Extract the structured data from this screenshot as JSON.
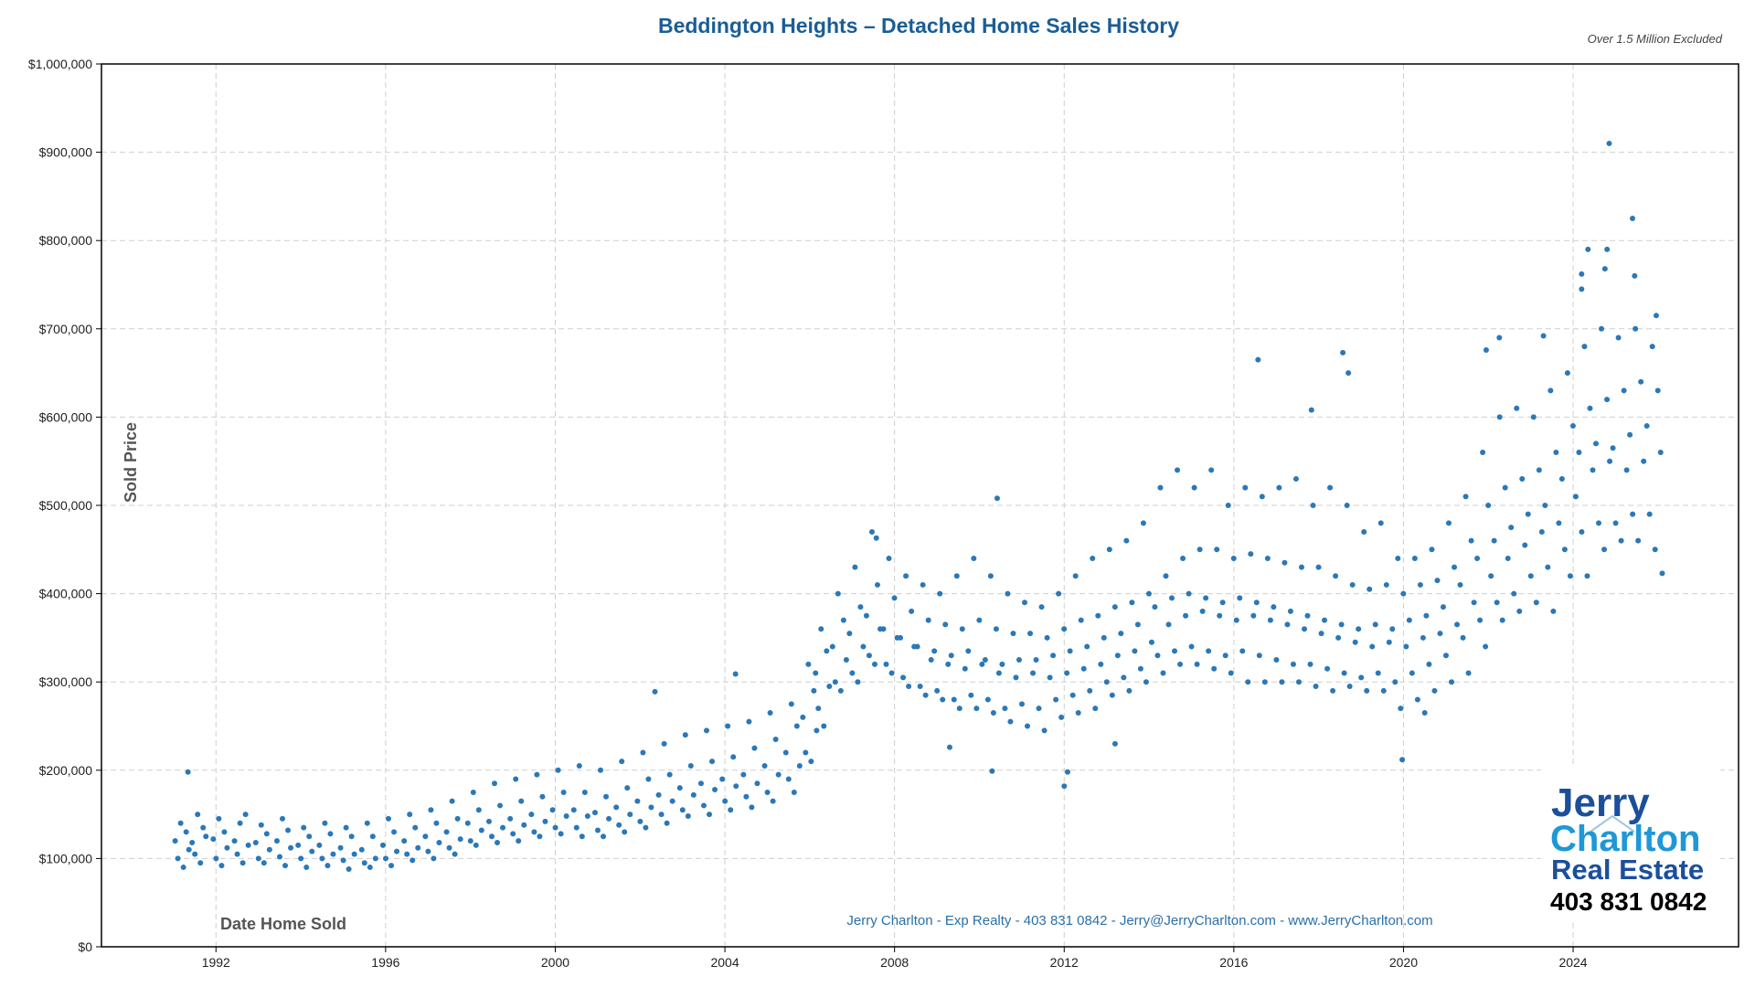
{
  "chart_data": {
    "type": "scatter",
    "title": "Beddington Heights – Detached Home Sales History",
    "subtitle": "Over 1.5 Million Excluded",
    "xlabel": "Date Home Sold",
    "ylabel": "Sold Price",
    "xlim": [
      1989.3,
      2027.9
    ],
    "ylim": [
      0,
      1000000
    ],
    "x_ticks": [
      1992,
      1996,
      2000,
      2004,
      2008,
      2012,
      2016,
      2020,
      2024
    ],
    "y_ticks": [
      0,
      100000,
      200000,
      300000,
      400000,
      500000,
      600000,
      700000,
      800000,
      900000,
      1000000
    ],
    "y_tick_labels": [
      "$0",
      "$100,000",
      "$200,000",
      "$300,000",
      "$400,000",
      "$500,000",
      "$600,000",
      "$700,000",
      "$800,000",
      "$900,000",
      "$1,000,000"
    ],
    "grid": true,
    "point_color": "#2a78b8",
    "groups": [
      {
        "x": 1991.2,
        "y": [
          120000,
          100000,
          140000,
          90000,
          130000,
          110000
        ]
      },
      {
        "x": 1991.6,
        "y": [
          118000,
          105000,
          150000,
          95000,
          135000,
          125000
        ]
      },
      {
        "x": 1992.1,
        "y": [
          122000,
          100000,
          145000,
          92000,
          130000,
          112000
        ]
      },
      {
        "x": 1992.6,
        "y": [
          120000,
          105000,
          140000,
          95000,
          150000,
          115000
        ]
      },
      {
        "x": 1993.1,
        "y": [
          118000,
          100000,
          138000,
          95000,
          128000,
          110000
        ]
      },
      {
        "x": 1993.6,
        "y": [
          120000,
          102000,
          145000,
          92000,
          132000,
          112000
        ]
      },
      {
        "x": 1994.1,
        "y": [
          115000,
          100000,
          135000,
          90000,
          125000,
          108000
        ]
      },
      {
        "x": 1994.6,
        "y": [
          115000,
          100000,
          140000,
          92000,
          128000,
          105000
        ]
      },
      {
        "x": 1995.1,
        "y": [
          112000,
          98000,
          135000,
          88000,
          125000,
          105000
        ]
      },
      {
        "x": 1995.6,
        "y": [
          110000,
          95000,
          140000,
          90000,
          125000,
          100000
        ]
      },
      {
        "x": 1996.1,
        "y": [
          115000,
          100000,
          145000,
          92000,
          130000,
          108000
        ]
      },
      {
        "x": 1996.6,
        "y": [
          120000,
          105000,
          150000,
          98000,
          135000,
          112000
        ]
      },
      {
        "x": 1997.1,
        "y": [
          125000,
          108000,
          155000,
          100000,
          140000,
          118000
        ]
      },
      {
        "x": 1997.6,
        "y": [
          130000,
          112000,
          165000,
          105000,
          145000,
          122000
        ]
      },
      {
        "x": 1998.1,
        "y": [
          140000,
          120000,
          175000,
          115000,
          155000,
          132000
        ]
      },
      {
        "x": 1998.6,
        "y": [
          142000,
          125000,
          185000,
          118000,
          160000,
          135000
        ]
      },
      {
        "x": 1999.1,
        "y": [
          145000,
          128000,
          190000,
          120000,
          165000,
          138000
        ]
      },
      {
        "x": 1999.6,
        "y": [
          150000,
          130000,
          195000,
          125000,
          170000,
          142000
        ]
      },
      {
        "x": 2000.1,
        "y": [
          155000,
          135000,
          200000,
          128000,
          175000,
          148000
        ]
      },
      {
        "x": 2000.6,
        "y": [
          155000,
          135000,
          205000,
          125000,
          175000,
          148000
        ]
      },
      {
        "x": 2001.1,
        "y": [
          152000,
          132000,
          200000,
          125000,
          170000,
          145000
        ]
      },
      {
        "x": 2001.6,
        "y": [
          158000,
          138000,
          210000,
          130000,
          180000,
          150000
        ]
      },
      {
        "x": 2002.1,
        "y": [
          165000,
          142000,
          220000,
          135000,
          190000,
          158000
        ]
      },
      {
        "x": 2002.6,
        "y": [
          172000,
          150000,
          230000,
          140000,
          195000,
          165000
        ]
      },
      {
        "x": 2003.1,
        "y": [
          180000,
          155000,
          240000,
          148000,
          205000,
          172000
        ]
      },
      {
        "x": 2003.6,
        "y": [
          185000,
          160000,
          245000,
          150000,
          210000,
          178000
        ]
      },
      {
        "x": 2004.1,
        "y": [
          190000,
          165000,
          250000,
          155000,
          215000,
          182000
        ]
      },
      {
        "x": 2004.6,
        "y": [
          195000,
          170000,
          255000,
          158000,
          225000,
          185000
        ]
      },
      {
        "x": 2005.1,
        "y": [
          205000,
          175000,
          265000,
          165000,
          235000,
          195000
        ]
      },
      {
        "x": 2005.6,
        "y": [
          220000,
          190000,
          275000,
          175000,
          250000,
          205000
        ]
      },
      {
        "x": 2006.0,
        "y": [
          260000,
          220000,
          320000,
          210000,
          290000,
          245000
        ]
      },
      {
        "x": 2006.3,
        "y": [
          310000,
          270000,
          360000,
          250000,
          335000,
          295000
        ]
      },
      {
        "x": 2006.7,
        "y": [
          340000,
          300000,
          400000,
          290000,
          370000,
          325000
        ]
      },
      {
        "x": 2007.1,
        "y": [
          355000,
          310000,
          430000,
          300000,
          385000,
          340000
        ]
      },
      {
        "x": 2007.5,
        "y": [
          375000,
          330000,
          470000,
          320000,
          410000,
          360000
        ]
      },
      {
        "x": 2007.9,
        "y": [
          360000,
          320000,
          440000,
          310000,
          395000,
          350000
        ]
      },
      {
        "x": 2008.3,
        "y": [
          350000,
          305000,
          420000,
          295000,
          380000,
          340000
        ]
      },
      {
        "x": 2008.7,
        "y": [
          340000,
          295000,
          410000,
          285000,
          370000,
          325000
        ]
      },
      {
        "x": 2009.1,
        "y": [
          335000,
          290000,
          400000,
          280000,
          365000,
          320000
        ]
      },
      {
        "x": 2009.5,
        "y": [
          330000,
          280000,
          420000,
          270000,
          360000,
          315000
        ]
      },
      {
        "x": 2009.9,
        "y": [
          335000,
          285000,
          440000,
          270000,
          370000,
          320000
        ]
      },
      {
        "x": 2010.3,
        "y": [
          325000,
          280000,
          420000,
          265000,
          360000,
          310000
        ]
      },
      {
        "x": 2010.7,
        "y": [
          320000,
          270000,
          400000,
          255000,
          355000,
          305000
        ]
      },
      {
        "x": 2011.1,
        "y": [
          325000,
          275000,
          390000,
          250000,
          355000,
          310000
        ]
      },
      {
        "x": 2011.5,
        "y": [
          325000,
          270000,
          385000,
          245000,
          350000,
          305000
        ]
      },
      {
        "x": 2011.9,
        "y": [
          330000,
          280000,
          400000,
          260000,
          360000,
          310000
        ]
      },
      {
        "x": 2012.3,
        "y": [
          335000,
          285000,
          420000,
          265000,
          370000,
          315000
        ]
      },
      {
        "x": 2012.7,
        "y": [
          340000,
          290000,
          440000,
          270000,
          375000,
          320000
        ]
      },
      {
        "x": 2013.1,
        "y": [
          350000,
          300000,
          450000,
          285000,
          385000,
          330000
        ]
      },
      {
        "x": 2013.5,
        "y": [
          355000,
          305000,
          460000,
          290000,
          390000,
          335000
        ]
      },
      {
        "x": 2013.9,
        "y": [
          365000,
          315000,
          480000,
          300000,
          400000,
          345000
        ]
      },
      {
        "x": 2014.3,
        "y": [
          385000,
          330000,
          520000,
          310000,
          420000,
          365000
        ]
      },
      {
        "x": 2014.7,
        "y": [
          395000,
          335000,
          540000,
          320000,
          440000,
          375000
        ]
      },
      {
        "x": 2015.1,
        "y": [
          400000,
          340000,
          520000,
          320000,
          450000,
          380000
        ]
      },
      {
        "x": 2015.5,
        "y": [
          395000,
          335000,
          540000,
          315000,
          450000,
          375000
        ]
      },
      {
        "x": 2015.9,
        "y": [
          390000,
          330000,
          500000,
          310000,
          440000,
          370000
        ]
      },
      {
        "x": 2016.3,
        "y": [
          395000,
          335000,
          520000,
          300000,
          445000,
          375000
        ]
      },
      {
        "x": 2016.7,
        "y": [
          390000,
          330000,
          510000,
          300000,
          440000,
          370000
        ]
      },
      {
        "x": 2017.1,
        "y": [
          385000,
          325000,
          520000,
          300000,
          435000,
          365000
        ]
      },
      {
        "x": 2017.5,
        "y": [
          380000,
          320000,
          530000,
          300000,
          430000,
          360000
        ]
      },
      {
        "x": 2017.9,
        "y": [
          375000,
          320000,
          500000,
          295000,
          430000,
          355000
        ]
      },
      {
        "x": 2018.3,
        "y": [
          370000,
          315000,
          520000,
          290000,
          420000,
          350000
        ]
      },
      {
        "x": 2018.7,
        "y": [
          365000,
          310000,
          500000,
          295000,
          410000,
          345000
        ]
      },
      {
        "x": 2019.1,
        "y": [
          360000,
          305000,
          470000,
          290000,
          405000,
          340000
        ]
      },
      {
        "x": 2019.5,
        "y": [
          365000,
          310000,
          480000,
          290000,
          410000,
          345000
        ]
      },
      {
        "x": 2019.9,
        "y": [
          360000,
          300000,
          440000,
          270000,
          400000,
          340000
        ]
      },
      {
        "x": 2020.3,
        "y": [
          370000,
          310000,
          440000,
          280000,
          410000,
          350000
        ]
      },
      {
        "x": 2020.7,
        "y": [
          375000,
          320000,
          450000,
          290000,
          415000,
          355000
        ]
      },
      {
        "x": 2021.1,
        "y": [
          385000,
          330000,
          480000,
          300000,
          430000,
          365000
        ]
      },
      {
        "x": 2021.5,
        "y": [
          410000,
          350000,
          510000,
          310000,
          460000,
          390000
        ]
      },
      {
        "x": 2021.9,
        "y": [
          440000,
          370000,
          560000,
          340000,
          500000,
          420000
        ]
      },
      {
        "x": 2022.3,
        "y": [
          460000,
          390000,
          600000,
          370000,
          520000,
          440000
        ]
      },
      {
        "x": 2022.7,
        "y": [
          475000,
          400000,
          610000,
          380000,
          530000,
          455000
        ]
      },
      {
        "x": 2023.1,
        "y": [
          490000,
          420000,
          600000,
          390000,
          540000,
          470000
        ]
      },
      {
        "x": 2023.5,
        "y": [
          500000,
          430000,
          630000,
          380000,
          560000,
          480000
        ]
      },
      {
        "x": 2023.9,
        "y": [
          530000,
          450000,
          650000,
          420000,
          590000,
          510000
        ]
      },
      {
        "x": 2024.3,
        "y": [
          560000,
          470000,
          680000,
          420000,
          610000,
          540000
        ]
      },
      {
        "x": 2024.7,
        "y": [
          570000,
          480000,
          700000,
          450000,
          620000,
          550000
        ]
      },
      {
        "x": 2025.1,
        "y": [
          565000,
          480000,
          690000,
          460000,
          630000,
          540000
        ]
      },
      {
        "x": 2025.5,
        "y": [
          580000,
          490000,
          700000,
          460000,
          640000,
          550000
        ]
      },
      {
        "x": 2025.9,
        "y": [
          590000,
          490000,
          680000,
          450000,
          630000,
          560000
        ]
      }
    ],
    "outliers": [
      [
        2024.85,
        910000
      ],
      [
        2025.4,
        825000
      ],
      [
        2024.35,
        790000
      ],
      [
        2024.8,
        790000
      ],
      [
        2024.75,
        768000
      ],
      [
        2024.2,
        762000
      ],
      [
        2025.45,
        760000
      ],
      [
        2024.2,
        745000
      ],
      [
        2025.96,
        715000
      ],
      [
        2016.57,
        665000
      ],
      [
        2018.57,
        673000
      ],
      [
        2018.7,
        650000
      ],
      [
        2017.83,
        608000
      ],
      [
        2019.97,
        212000
      ],
      [
        2010.3,
        199000
      ],
      [
        2012.08,
        198000
      ],
      [
        2012.0,
        182000
      ],
      [
        2010.42,
        508000
      ],
      [
        2007.57,
        463000
      ],
      [
        2021.95,
        676000
      ],
      [
        2022.26,
        690000
      ],
      [
        2023.3,
        692000
      ],
      [
        2026.1,
        423000
      ],
      [
        1991.34,
        198000
      ],
      [
        2002.35,
        289000
      ],
      [
        2004.25,
        309000
      ],
      [
        2009.3,
        226000
      ],
      [
        2013.2,
        230000
      ],
      [
        2020.5,
        265000
      ]
    ]
  },
  "footer": {
    "contact": "Jerry Charlton - Exp Realty - 403 831 0842 - Jerry@JerryCharlton.com - www.JerryCharlton.com"
  },
  "logo": {
    "line1": "Jerry",
    "line2": "Charlton",
    "line3": "Real Estate",
    "phone": "403 831 0842",
    "color_dark": "#1b4f9c",
    "color_light": "#1e98d7"
  },
  "colors": {
    "title": "#1a5d96",
    "footer": "#2a6fa8"
  }
}
